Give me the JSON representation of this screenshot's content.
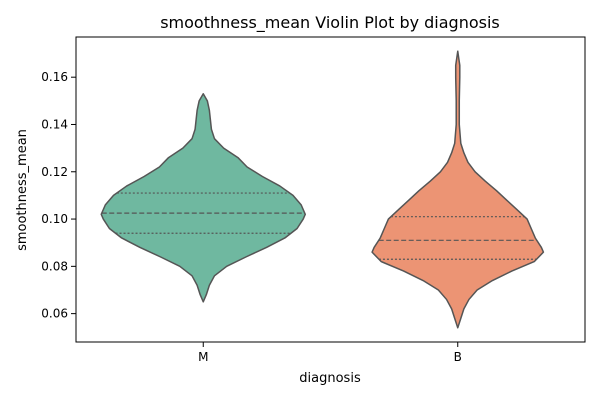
{
  "chart_data": {
    "type": "violin",
    "title": "smoothness_mean Violin Plot by diagnosis",
    "xlabel": "diagnosis",
    "ylabel": "smoothness_mean",
    "categories": [
      "M",
      "B"
    ],
    "ylim": [
      0.048,
      0.177
    ],
    "yticks": [
      0.06,
      0.08,
      0.1,
      0.12,
      0.14,
      0.16
    ],
    "ytick_labels": [
      "0.06",
      "0.08",
      "0.10",
      "0.12",
      "0.14",
      "0.16"
    ],
    "inner": "quartile",
    "grid": false,
    "legend": "none",
    "series": [
      {
        "category": "M",
        "color": "#6fb8a0",
        "edge_color": "#555555",
        "min": 0.065,
        "max": 0.153,
        "q1": 0.094,
        "median": 0.1025,
        "q3": 0.111,
        "density": [
          [
            0.065,
            0.0
          ],
          [
            0.068,
            0.03
          ],
          [
            0.072,
            0.06
          ],
          [
            0.076,
            0.11
          ],
          [
            0.08,
            0.23
          ],
          [
            0.084,
            0.42
          ],
          [
            0.088,
            0.62
          ],
          [
            0.092,
            0.8
          ],
          [
            0.096,
            0.92
          ],
          [
            0.1,
            0.98
          ],
          [
            0.102,
            1.0
          ],
          [
            0.106,
            0.96
          ],
          [
            0.11,
            0.88
          ],
          [
            0.114,
            0.75
          ],
          [
            0.118,
            0.58
          ],
          [
            0.122,
            0.43
          ],
          [
            0.126,
            0.34
          ],
          [
            0.13,
            0.2
          ],
          [
            0.134,
            0.11
          ],
          [
            0.138,
            0.08
          ],
          [
            0.142,
            0.07
          ],
          [
            0.146,
            0.06
          ],
          [
            0.15,
            0.04
          ],
          [
            0.153,
            0.0
          ]
        ]
      },
      {
        "category": "B",
        "color": "#ec9474",
        "edge_color": "#555555",
        "min": 0.054,
        "max": 0.171,
        "q1": 0.083,
        "median": 0.091,
        "q3": 0.101,
        "density": [
          [
            0.054,
            0.0
          ],
          [
            0.058,
            0.03
          ],
          [
            0.062,
            0.06
          ],
          [
            0.066,
            0.11
          ],
          [
            0.07,
            0.19
          ],
          [
            0.074,
            0.34
          ],
          [
            0.078,
            0.53
          ],
          [
            0.082,
            0.75
          ],
          [
            0.086,
            0.84
          ],
          [
            0.088,
            0.82
          ],
          [
            0.092,
            0.76
          ],
          [
            0.096,
            0.72
          ],
          [
            0.1,
            0.68
          ],
          [
            0.104,
            0.58
          ],
          [
            0.108,
            0.48
          ],
          [
            0.112,
            0.38
          ],
          [
            0.116,
            0.27
          ],
          [
            0.12,
            0.17
          ],
          [
            0.124,
            0.1
          ],
          [
            0.128,
            0.06
          ],
          [
            0.132,
            0.03
          ],
          [
            0.14,
            0.015
          ],
          [
            0.15,
            0.015
          ],
          [
            0.16,
            0.02
          ],
          [
            0.165,
            0.02
          ],
          [
            0.171,
            0.0
          ]
        ]
      }
    ]
  }
}
